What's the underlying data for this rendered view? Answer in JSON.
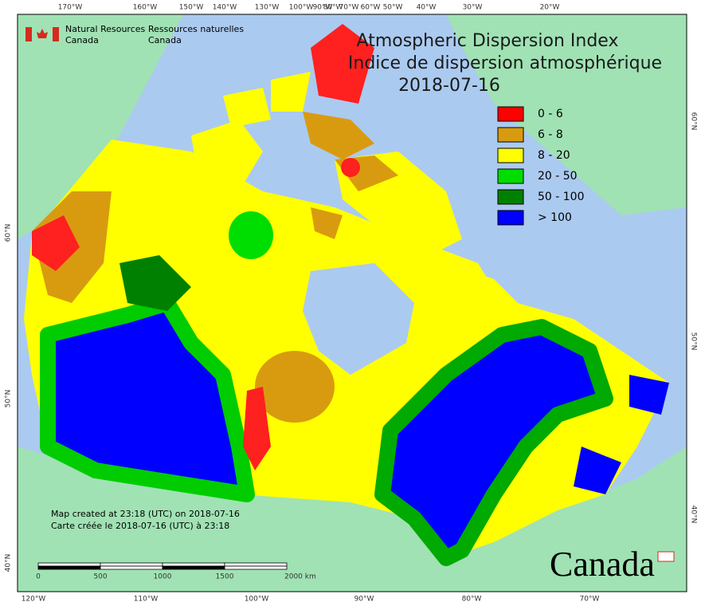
{
  "map": {
    "title": "Atmospheric Dispersion Index",
    "subtitle": "Indice de dispersion atmosphérique",
    "date": "2018-07-16",
    "agency": {
      "en": [
        "Natural Resources",
        "Canada"
      ],
      "fr": [
        "Ressources naturelles",
        "Canada"
      ]
    },
    "legend": [
      {
        "label": "0 - 6",
        "color": "#ff0000"
      },
      {
        "label": "6 - 8",
        "color": "#d89b10"
      },
      {
        "label": "8 - 20",
        "color": "#ffff00"
      },
      {
        "label": "20 - 50",
        "color": "#00dd00"
      },
      {
        "label": "50 - 100",
        "color": "#008000"
      },
      {
        "label": "> 100",
        "color": "#0000ff"
      }
    ],
    "top_labels": [
      "170°W",
      "160°W",
      "150°W",
      "140°W",
      "130°W",
      "100°W",
      "90°W",
      "80°W",
      "70°W",
      "60°W",
      "50°W",
      "40°W",
      "30°W",
      "20°W"
    ],
    "bottom_labels": [
      "120°W",
      "110°W",
      "100°W",
      "90°W",
      "80°W",
      "70°W"
    ],
    "left_labels": [
      "60°N",
      "50°N",
      "40°N"
    ],
    "right_labels": [
      "60°N",
      "50°N",
      "40°N"
    ],
    "credits": [
      "Map created at 23:18 (UTC) on 2018-07-16",
      "Carte créée le 2018-07-16 (UTC) à 23:18"
    ],
    "scale_labels": [
      "0",
      "500",
      "1000",
      "1500",
      "2000 km"
    ],
    "wordmark": "Canada"
  }
}
